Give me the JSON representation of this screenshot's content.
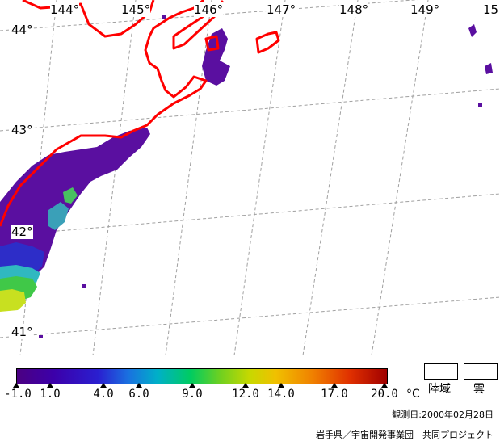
{
  "map": {
    "longitude_labels": [
      "144°",
      "145°",
      "146°",
      "147°",
      "148°",
      "149°",
      "15"
    ],
    "latitude_labels": [
      "44°",
      "43°",
      "42°",
      "41°"
    ]
  },
  "legend": {
    "tick_labels": [
      "-1.0",
      "1.0",
      "4.0",
      "6.0",
      "9.0",
      "12.0",
      "14.0",
      "17.0",
      "20.0"
    ],
    "unit": "°C",
    "land_label": "陸域",
    "cloud_label": "雲"
  },
  "footer": {
    "date": "観測日:2000年02月28日",
    "credit": "岩手県／宇宙開発事業団　共同プロジェクト"
  },
  "colors": {
    "coastline": "#ff0000",
    "graticule": "#9a9a9a",
    "scale_min": "#4b0082",
    "scale_max": "#a00000"
  }
}
